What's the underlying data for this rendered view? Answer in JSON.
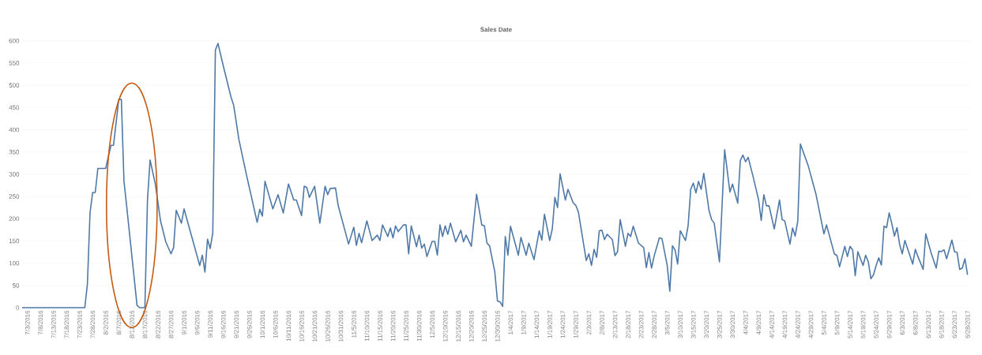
{
  "chart_data": {
    "type": "line",
    "title": "Sales Date",
    "color": "#4e79a7",
    "x": [
      "2016-07-01",
      "2016-07-25",
      "2016-07-26",
      "2016-07-27",
      "2016-07-28",
      "2016-07-29",
      "2016-07-30",
      "2016-08-02",
      "2016-08-04",
      "2016-08-05",
      "2016-08-07",
      "2016-08-08",
      "2016-08-09",
      "2016-08-10",
      "2016-08-14",
      "2016-08-15",
      "2016-08-17",
      "2016-08-18",
      "2016-08-19",
      "2016-08-21",
      "2016-08-23",
      "2016-08-25",
      "2016-08-27",
      "2016-08-28",
      "2016-08-29",
      "2016-08-31",
      "2016-09-01",
      "2016-09-07",
      "2016-09-08",
      "2016-09-09",
      "2016-09-10",
      "2016-09-11",
      "2016-09-12",
      "2016-09-13",
      "2016-09-14",
      "2016-09-16",
      "2016-09-19",
      "2016-09-20",
      "2016-09-22",
      "2016-09-25",
      "2016-09-29",
      "2016-09-30",
      "2016-10-01",
      "2016-10-02",
      "2016-10-05",
      "2016-10-07",
      "2016-10-09",
      "2016-10-11",
      "2016-10-13",
      "2016-10-14",
      "2016-10-16",
      "2016-10-17",
      "2016-10-18",
      "2016-10-19",
      "2016-10-21",
      "2016-10-23",
      "2016-10-25",
      "2016-10-26",
      "2016-10-27",
      "2016-10-29",
      "2016-10-30",
      "2016-11-03",
      "2016-11-05",
      "2016-11-06",
      "2016-11-07",
      "2016-11-08",
      "2016-11-10",
      "2016-11-12",
      "2016-11-14",
      "2016-11-15",
      "2016-11-16",
      "2016-11-18",
      "2016-11-19",
      "2016-11-20",
      "2016-11-21",
      "2016-11-22",
      "2016-11-24",
      "2016-11-25",
      "2016-11-26",
      "2016-11-27",
      "2016-11-29",
      "2016-11-30",
      "2016-12-01",
      "2016-12-02",
      "2016-12-03",
      "2016-12-05",
      "2016-12-06",
      "2016-12-07",
      "2016-12-08",
      "2016-12-09",
      "2016-12-10",
      "2016-12-11",
      "2016-12-12",
      "2016-12-14",
      "2016-12-16",
      "2016-12-17",
      "2016-12-18",
      "2016-12-20",
      "2016-12-22",
      "2016-12-24",
      "2016-12-25",
      "2016-12-26",
      "2016-12-27",
      "2016-12-29",
      "2016-12-30",
      "2016-12-31",
      "2017-01-01",
      "2017-01-02",
      "2017-01-03",
      "2017-01-04",
      "2017-01-07",
      "2017-01-08",
      "2017-01-10",
      "2017-01-11",
      "2017-01-13",
      "2017-01-15",
      "2017-01-16",
      "2017-01-17",
      "2017-01-19",
      "2017-01-20",
      "2017-01-21",
      "2017-01-22",
      "2017-01-23",
      "2017-01-25",
      "2017-01-26",
      "2017-01-28",
      "2017-01-29",
      "2017-01-30",
      "2017-02-02",
      "2017-02-03",
      "2017-02-04",
      "2017-02-05",
      "2017-02-06",
      "2017-02-07",
      "2017-02-08",
      "2017-02-09",
      "2017-02-10",
      "2017-02-12",
      "2017-02-13",
      "2017-02-14",
      "2017-02-15",
      "2017-02-17",
      "2017-02-18",
      "2017-02-19",
      "2017-02-20",
      "2017-02-22",
      "2017-02-24",
      "2017-02-25",
      "2017-02-26",
      "2017-02-27",
      "2017-02-28",
      "2017-03-02",
      "2017-03-03",
      "2017-03-05",
      "2017-03-06",
      "2017-03-07",
      "2017-03-08",
      "2017-03-09",
      "2017-03-10",
      "2017-03-12",
      "2017-03-13",
      "2017-03-14",
      "2017-03-15",
      "2017-03-16",
      "2017-03-17",
      "2017-03-18",
      "2017-03-19",
      "2017-03-21",
      "2017-03-22",
      "2017-03-23",
      "2017-03-25",
      "2017-03-27",
      "2017-03-29",
      "2017-03-30",
      "2017-04-01",
      "2017-04-02",
      "2017-04-03",
      "2017-04-04",
      "2017-04-05",
      "2017-04-07",
      "2017-04-09",
      "2017-04-10",
      "2017-04-11",
      "2017-04-12",
      "2017-04-13",
      "2017-04-15",
      "2017-04-17",
      "2017-04-18",
      "2017-04-19",
      "2017-04-21",
      "2017-04-22",
      "2017-04-23",
      "2017-04-24",
      "2017-04-25",
      "2017-04-28",
      "2017-05-01",
      "2017-05-04",
      "2017-05-05",
      "2017-05-08",
      "2017-05-09",
      "2017-05-10",
      "2017-05-12",
      "2017-05-13",
      "2017-05-14",
      "2017-05-15",
      "2017-05-16",
      "2017-05-17",
      "2017-05-18",
      "2017-05-19",
      "2017-05-20",
      "2017-05-21",
      "2017-05-22",
      "2017-05-23",
      "2017-05-24",
      "2017-05-25",
      "2017-05-26",
      "2017-05-27",
      "2017-05-28",
      "2017-05-29",
      "2017-05-30",
      "2017-05-31",
      "2017-06-01",
      "2017-06-02",
      "2017-06-03",
      "2017-06-04",
      "2017-06-07",
      "2017-06-08",
      "2017-06-09",
      "2017-06-11",
      "2017-06-12",
      "2017-06-14",
      "2017-06-16",
      "2017-06-17",
      "2017-06-18",
      "2017-06-19",
      "2017-06-20",
      "2017-06-22",
      "2017-06-23",
      "2017-06-24",
      "2017-06-25",
      "2017-06-26",
      "2017-06-27",
      "2017-06-28"
    ],
    "values": [
      0,
      0,
      53,
      213,
      259,
      259,
      313,
      313,
      365,
      365,
      468,
      468,
      284,
      230,
      5,
      0,
      0,
      242,
      332,
      278,
      195,
      148,
      121,
      135,
      219,
      190,
      222,
      95,
      118,
      80,
      154,
      133,
      168,
      579,
      594,
      544,
      473,
      455,
      378,
      296,
      192,
      221,
      206,
      284,
      222,
      254,
      213,
      278,
      242,
      242,
      207,
      273,
      270,
      248,
      273,
      190,
      273,
      254,
      268,
      269,
      230,
      143,
      181,
      140,
      167,
      146,
      195,
      151,
      163,
      151,
      186,
      160,
      179,
      157,
      184,
      171,
      186,
      186,
      121,
      184,
      137,
      163,
      134,
      143,
      115,
      149,
      149,
      118,
      186,
      160,
      184,
      165,
      190,
      148,
      174,
      148,
      163,
      138,
      255,
      186,
      184,
      145,
      139,
      80,
      15,
      13,
      3,
      160,
      118,
      183,
      118,
      158,
      118,
      145,
      108,
      173,
      152,
      210,
      151,
      177,
      248,
      225,
      301,
      242,
      266,
      236,
      230,
      215,
      106,
      121,
      95,
      131,
      113,
      173,
      174,
      153,
      165,
      153,
      117,
      126,
      198,
      138,
      167,
      160,
      183,
      145,
      135,
      90,
      124,
      89,
      116,
      157,
      155,
      95,
      37,
      139,
      130,
      98,
      173,
      151,
      184,
      266,
      280,
      258,
      284,
      266,
      302,
      219,
      198,
      190,
      103,
      355,
      260,
      278,
      235,
      331,
      343,
      328,
      338,
      292,
      242,
      196,
      254,
      229,
      229,
      177,
      242,
      198,
      195,
      143,
      179,
      161,
      195,
      368,
      319,
      254,
      166,
      186,
      121,
      117,
      92,
      138,
      115,
      138,
      130,
      72,
      126,
      110,
      95,
      118,
      103,
      65,
      74,
      95,
      112,
      96,
      183,
      180,
      213,
      189,
      161,
      180,
      142,
      121,
      151,
      98,
      131,
      115,
      86,
      166,
      124,
      89,
      127,
      126,
      130,
      110,
      152,
      126,
      124,
      86,
      89,
      110,
      74
    ],
    "xlim": [
      "2016-07-01",
      "2017-06-29"
    ],
    "ylim": [
      0,
      600
    ],
    "yticks": [
      0,
      50,
      100,
      150,
      200,
      250,
      300,
      350,
      400,
      450,
      500,
      550,
      600
    ],
    "xticks": [
      {
        "value": "2016-07-03",
        "label": "7/3/2016"
      },
      {
        "value": "2016-07-08",
        "label": "7/8/2016"
      },
      {
        "value": "2016-07-13",
        "label": "7/13/2016"
      },
      {
        "value": "2016-07-18",
        "label": "7/18/2016"
      },
      {
        "value": "2016-07-23",
        "label": "7/23/2016"
      },
      {
        "value": "2016-07-28",
        "label": "7/28/2016"
      },
      {
        "value": "2016-08-02",
        "label": "8/2/2016"
      },
      {
        "value": "2016-08-07",
        "label": "8/7/2016"
      },
      {
        "value": "2016-08-12",
        "label": "8/12/2016"
      },
      {
        "value": "2016-08-17",
        "label": "8/17/2016"
      },
      {
        "value": "2016-08-22",
        "label": "8/22/2016"
      },
      {
        "value": "2016-08-27",
        "label": "8/27/2016"
      },
      {
        "value": "2016-09-01",
        "label": "9/1/2016"
      },
      {
        "value": "2016-09-06",
        "label": "9/6/2016"
      },
      {
        "value": "2016-09-11",
        "label": "9/11/2016"
      },
      {
        "value": "2016-09-16",
        "label": "9/16/2016"
      },
      {
        "value": "2016-09-21",
        "label": "9/21/2016"
      },
      {
        "value": "2016-09-26",
        "label": "9/26/2016"
      },
      {
        "value": "2016-10-01",
        "label": "10/1/2016"
      },
      {
        "value": "2016-10-06",
        "label": "10/6/2016"
      },
      {
        "value": "2016-10-11",
        "label": "10/11/2016"
      },
      {
        "value": "2016-10-16",
        "label": "10/16/2016"
      },
      {
        "value": "2016-10-21",
        "label": "10/21/2016"
      },
      {
        "value": "2016-10-26",
        "label": "10/26/2016"
      },
      {
        "value": "2016-10-31",
        "label": "10/31/2016"
      },
      {
        "value": "2016-11-05",
        "label": "11/5/2016"
      },
      {
        "value": "2016-11-10",
        "label": "11/10/2016"
      },
      {
        "value": "2016-11-15",
        "label": "11/15/2016"
      },
      {
        "value": "2016-11-20",
        "label": "11/20/2016"
      },
      {
        "value": "2016-11-25",
        "label": "11/25/2016"
      },
      {
        "value": "2016-11-30",
        "label": "11/30/2016"
      },
      {
        "value": "2016-12-05",
        "label": "12/5/2016"
      },
      {
        "value": "2016-12-10",
        "label": "12/10/2016"
      },
      {
        "value": "2016-12-15",
        "label": "12/15/2016"
      },
      {
        "value": "2016-12-20",
        "label": "12/20/2016"
      },
      {
        "value": "2016-12-25",
        "label": "12/25/2016"
      },
      {
        "value": "2016-12-30",
        "label": "12/30/2016"
      },
      {
        "value": "2017-01-04",
        "label": "1/4/2017"
      },
      {
        "value": "2017-01-09",
        "label": "1/9/2017"
      },
      {
        "value": "2017-01-14",
        "label": "1/14/2017"
      },
      {
        "value": "2017-01-19",
        "label": "1/19/2017"
      },
      {
        "value": "2017-01-24",
        "label": "1/24/2017"
      },
      {
        "value": "2017-01-29",
        "label": "1/29/2017"
      },
      {
        "value": "2017-02-03",
        "label": "2/3/2017"
      },
      {
        "value": "2017-02-08",
        "label": "2/8/2017"
      },
      {
        "value": "2017-02-13",
        "label": "2/13/2017"
      },
      {
        "value": "2017-02-18",
        "label": "2/18/2017"
      },
      {
        "value": "2017-02-23",
        "label": "2/23/2017"
      },
      {
        "value": "2017-02-28",
        "label": "2/28/2017"
      },
      {
        "value": "2017-03-05",
        "label": "3/5/2017"
      },
      {
        "value": "2017-03-10",
        "label": "3/10/2017"
      },
      {
        "value": "2017-03-15",
        "label": "3/15/2017"
      },
      {
        "value": "2017-03-20",
        "label": "3/20/2017"
      },
      {
        "value": "2017-03-25",
        "label": "3/25/2017"
      },
      {
        "value": "2017-03-30",
        "label": "3/30/2017"
      },
      {
        "value": "2017-04-04",
        "label": "4/4/2017"
      },
      {
        "value": "2017-04-09",
        "label": "4/9/2017"
      },
      {
        "value": "2017-04-14",
        "label": "4/14/2017"
      },
      {
        "value": "2017-04-19",
        "label": "4/19/2017"
      },
      {
        "value": "2017-04-24",
        "label": "4/24/2017"
      },
      {
        "value": "2017-04-29",
        "label": "4/29/2017"
      },
      {
        "value": "2017-05-04",
        "label": "5/4/2017"
      },
      {
        "value": "2017-05-09",
        "label": "5/9/2017"
      },
      {
        "value": "2017-05-14",
        "label": "5/14/2017"
      },
      {
        "value": "2017-05-19",
        "label": "5/19/2017"
      },
      {
        "value": "2017-05-24",
        "label": "5/24/2017"
      },
      {
        "value": "2017-05-29",
        "label": "5/29/2017"
      },
      {
        "value": "2017-06-03",
        "label": "6/3/2017"
      },
      {
        "value": "2017-06-08",
        "label": "6/8/2017"
      },
      {
        "value": "2017-06-13",
        "label": "6/13/2017"
      },
      {
        "value": "2017-06-18",
        "label": "6/18/2017"
      },
      {
        "value": "2017-06-23",
        "label": "6/23/2017"
      },
      {
        "value": "2017-06-28",
        "label": "6/28/2017"
      }
    ],
    "grid": "y"
  }
}
